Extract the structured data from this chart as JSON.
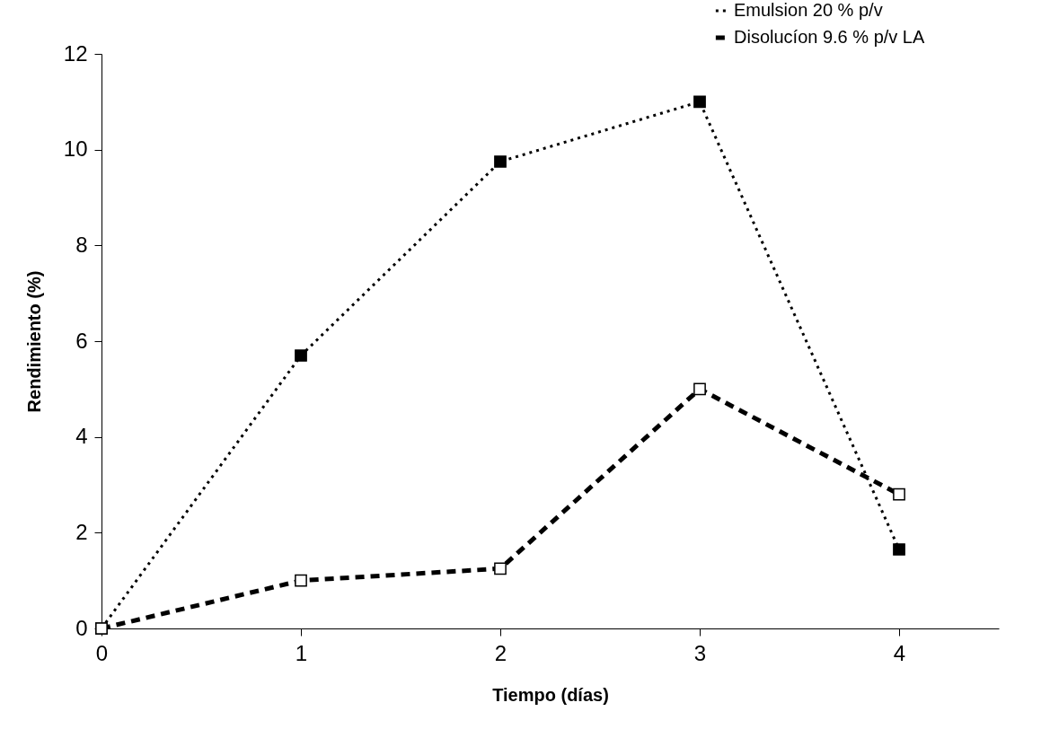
{
  "chart_data": {
    "type": "line",
    "xlabel": "Tiempo (días)",
    "ylabel": "Rendimiento (%)",
    "x": [
      0,
      1,
      2,
      3,
      4
    ],
    "series": [
      {
        "name": "Emulsion 20 % p/v",
        "color": "#000000",
        "line_style": "dotted",
        "values": [
          0,
          5.7,
          9.75,
          11.0,
          1.65
        ]
      },
      {
        "name": "Disolucíon 9.6 % p/v LA",
        "color": "#000000",
        "line_style": "dashed",
        "values": [
          0,
          1.0,
          1.25,
          5.0,
          2.8
        ]
      }
    ],
    "xlim": [
      0,
      4.5
    ],
    "xticks": [
      0,
      1,
      2,
      3,
      4
    ],
    "ylim": [
      0,
      12
    ],
    "yticks": [
      0,
      2,
      4,
      6,
      8,
      10,
      12
    ],
    "grid": false,
    "legend": "top right",
    "marker": "square"
  }
}
